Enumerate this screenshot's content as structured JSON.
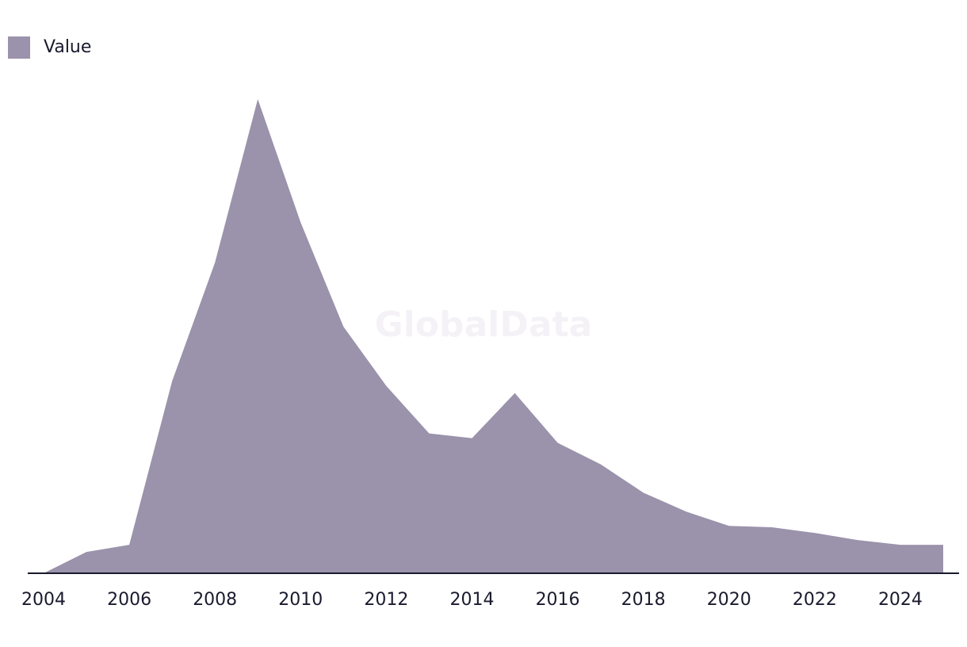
{
  "chart_data": {
    "type": "area",
    "x": [
      2004,
      2005,
      2006,
      2007,
      2008,
      2009,
      2010,
      2011,
      2012,
      2013,
      2014,
      2015,
      2016,
      2017,
      2018,
      2019,
      2020,
      2021,
      2022,
      2023,
      2024,
      2025
    ],
    "series": [
      {
        "name": "Value",
        "values": [
          0,
          4.5,
          6,
          40.5,
          65.5,
          100,
          74,
          52,
          39.5,
          29.5,
          28.5,
          38,
          27.5,
          23,
          17,
          13,
          10,
          9.7,
          8.5,
          7,
          6,
          6
        ]
      }
    ],
    "x_ticks": [
      "2004",
      "2006",
      "2008",
      "2010",
      "2012",
      "2014",
      "2016",
      "2018",
      "2020",
      "2022",
      "2024"
    ],
    "xlim": [
      2004,
      2025
    ],
    "ylim": [
      0,
      100
    ],
    "grid": false,
    "legend_position": "top-left",
    "colors": {
      "area": "#9b92ab",
      "axis": "#1a1a2e",
      "text": "#1a1a2e"
    },
    "watermark": "GlobalData"
  }
}
